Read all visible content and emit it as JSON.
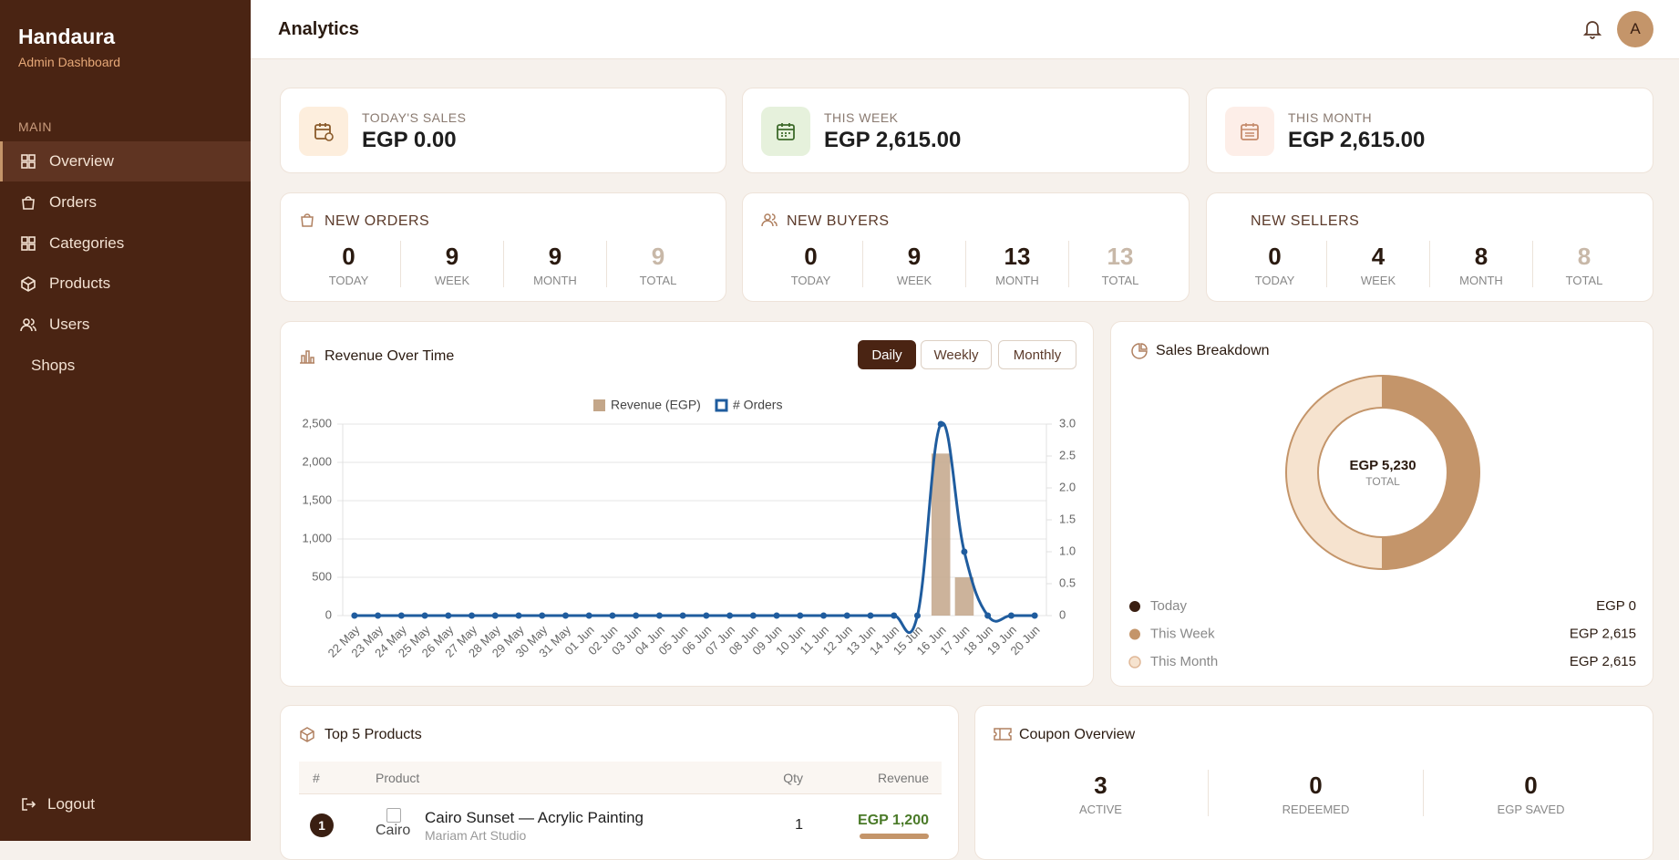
{
  "sidebar": {
    "brand": "Handaura",
    "subtitle": "Admin Dashboard",
    "section": "MAIN",
    "items": [
      "Overview",
      "Orders",
      "Categories",
      "Products",
      "Users",
      "Shops"
    ],
    "logout": "Logout"
  },
  "header": {
    "title": "Analytics",
    "avatar": "A"
  },
  "sales_cards": [
    {
      "label": "TODAY'S SALES",
      "value": "EGP 0.00"
    },
    {
      "label": "THIS WEEK",
      "value": "EGP 2,615.00"
    },
    {
      "label": "THIS MONTH",
      "value": "EGP 2,615.00"
    }
  ],
  "count_cards": [
    {
      "title": "NEW ORDERS",
      "counts": [
        {
          "value": "0",
          "label": "TODAY"
        },
        {
          "value": "9",
          "label": "WEEK"
        },
        {
          "value": "9",
          "label": "MONTH"
        },
        {
          "value": "9",
          "label": "TOTAL"
        }
      ]
    },
    {
      "title": "NEW BUYERS",
      "counts": [
        {
          "value": "0",
          "label": "TODAY"
        },
        {
          "value": "9",
          "label": "WEEK"
        },
        {
          "value": "13",
          "label": "MONTH"
        },
        {
          "value": "13",
          "label": "TOTAL"
        }
      ]
    },
    {
      "title": "NEW SELLERS",
      "counts": [
        {
          "value": "0",
          "label": "TODAY"
        },
        {
          "value": "4",
          "label": "WEEK"
        },
        {
          "value": "8",
          "label": "MONTH"
        },
        {
          "value": "8",
          "label": "TOTAL"
        }
      ]
    }
  ],
  "revenue_buttons": [
    "Daily",
    "Weekly",
    "Monthly"
  ],
  "chart_data": [
    {
      "type": "bar",
      "title": "Revenue Over Time",
      "categories": [
        "22 May",
        "23 May",
        "24 May",
        "25 May",
        "26 May",
        "27 May",
        "28 May",
        "29 May",
        "30 May",
        "31 May",
        "01 Jun",
        "02 Jun",
        "03 Jun",
        "04 Jun",
        "05 Jun",
        "06 Jun",
        "07 Jun",
        "08 Jun",
        "09 Jun",
        "10 Jun",
        "11 Jun",
        "12 Jun",
        "13 Jun",
        "14 Jun",
        "15 Jun",
        "16 Jun",
        "17 Jun",
        "18 Jun",
        "19 Jun",
        "20 Jun"
      ],
      "series": [
        {
          "name": "Revenue (EGP)",
          "type": "bar",
          "color": "#c3a689",
          "values": [
            0,
            0,
            0,
            0,
            0,
            0,
            0,
            0,
            0,
            0,
            0,
            0,
            0,
            0,
            0,
            0,
            0,
            0,
            0,
            0,
            0,
            0,
            0,
            0,
            0,
            2115,
            500,
            0,
            0,
            0
          ]
        },
        {
          "name": "# Orders",
          "type": "line",
          "color": "#1f5c9e",
          "axis": "y2",
          "values": [
            0,
            0,
            0,
            0,
            0,
            0,
            0,
            0,
            0,
            0,
            0,
            0,
            0,
            0,
            0,
            0,
            0,
            0,
            0,
            0,
            0,
            0,
            0,
            0,
            0,
            3,
            1,
            0,
            0,
            0
          ]
        }
      ],
      "ylim": [
        0,
        2500
      ],
      "yticks": [
        0,
        500,
        {
          "value": 1000,
          "label": "1,000"
        },
        {
          "value": 1500,
          "label": "1,500"
        },
        {
          "value": 2000,
          "label": "2,000"
        },
        {
          "value": 2500,
          "label": "2,500"
        }
      ],
      "y2lim": [
        0,
        3
      ],
      "y2ticks": [
        0,
        0.5,
        {
          "value": 1,
          "label": "1.0"
        },
        1.5,
        {
          "value": 2,
          "label": "2.0"
        },
        2.5,
        {
          "value": 3,
          "label": "3.0"
        }
      ],
      "grid": true
    },
    {
      "type": "donut",
      "title": "Sales Breakdown",
      "categories": [
        "Today",
        "This Week",
        "This Month"
      ],
      "values": [
        0,
        2615,
        2615
      ],
      "value_labels": [
        "EGP 0",
        "EGP 2,615",
        "EGP 2,615"
      ],
      "colors": [
        "#3a1f12",
        "#c4956a",
        "#f6e3cf"
      ],
      "center_value": "EGP 5,230",
      "center_label": "TOTAL"
    }
  ],
  "top_products": {
    "title": "Top 5 Products",
    "columns": [
      "#",
      "Product",
      "Qty",
      "Revenue"
    ],
    "rows": [
      {
        "rank": "1",
        "image_alt": "Cairo",
        "name": "Cairo Sunset — Acrylic Painting",
        "shop": "Mariam Art Studio",
        "qty": "1",
        "revenue": "EGP 1,200"
      }
    ]
  },
  "coupons": {
    "title": "Coupon Overview",
    "stats": [
      {
        "value": "3",
        "label": "ACTIVE"
      },
      {
        "value": "0",
        "label": "REDEEMED"
      },
      {
        "value": "0",
        "label": "EGP SAVED"
      }
    ]
  }
}
